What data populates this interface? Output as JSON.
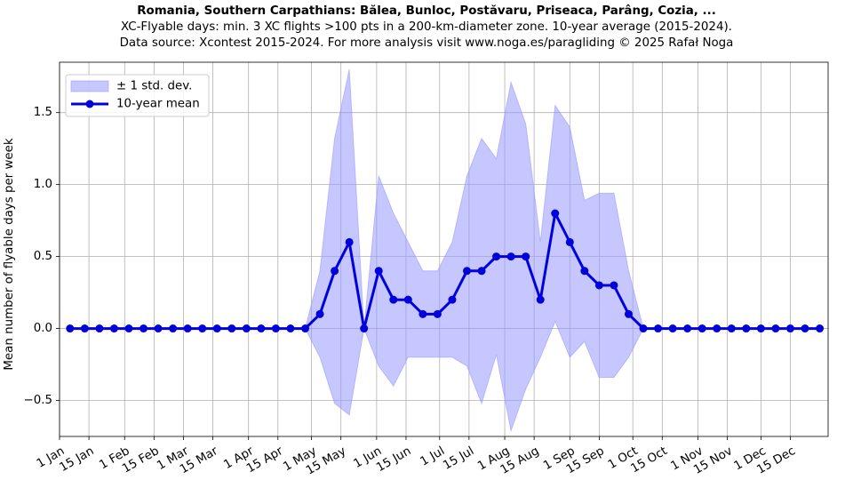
{
  "chart_data": {
    "type": "line",
    "title": "Romania, Southern Carpathians: Bălea, Bunloc, Postăvaru, Priseaca, Parâng, Cozia, ...",
    "subtitle": "XC-Flyable days: min. 3 XC flights >100 pts in a 200-km-diameter zone. 10-year average (2015-2024).",
    "source": "Data source: Xcontest 2015-2024. For more analysis visit www.noga.es/paragliding © 2025 Rafał Noga",
    "ylabel": "Mean number of flyable days per week",
    "xlabel": "",
    "x_range_days": [
      0,
      366
    ],
    "ylim": [
      -0.75,
      1.85
    ],
    "y_ticks": [
      -0.5,
      0.0,
      0.5,
      1.0,
      1.5
    ],
    "y_tick_labels": [
      "−0.5",
      "0.0",
      "0.5",
      "1.0",
      "1.5"
    ],
    "x_ticks": [
      {
        "day": 0,
        "label": "1 Jan"
      },
      {
        "day": 14,
        "label": "15 Jan"
      },
      {
        "day": 31,
        "label": "1 Feb"
      },
      {
        "day": 45,
        "label": "15 Feb"
      },
      {
        "day": 59,
        "label": "1 Mar"
      },
      {
        "day": 73,
        "label": "15 Mar"
      },
      {
        "day": 90,
        "label": "1 Apr"
      },
      {
        "day": 104,
        "label": "15 Apr"
      },
      {
        "day": 120,
        "label": "1 May"
      },
      {
        "day": 134,
        "label": "15 May"
      },
      {
        "day": 151,
        "label": "1 Jun"
      },
      {
        "day": 165,
        "label": "15 Jun"
      },
      {
        "day": 181,
        "label": "1 Jul"
      },
      {
        "day": 195,
        "label": "15 Jul"
      },
      {
        "day": 212,
        "label": "1 Aug"
      },
      {
        "day": 226,
        "label": "15 Aug"
      },
      {
        "day": 243,
        "label": "1 Sep"
      },
      {
        "day": 257,
        "label": "15 Sep"
      },
      {
        "day": 273,
        "label": "1 Oct"
      },
      {
        "day": 287,
        "label": "15 Oct"
      },
      {
        "day": 304,
        "label": "1 Nov"
      },
      {
        "day": 318,
        "label": "15 Nov"
      },
      {
        "day": 334,
        "label": "1 Dec"
      },
      {
        "day": 348,
        "label": "15 Dec"
      }
    ],
    "week_x_days": [
      5,
      12,
      19,
      26,
      33,
      40,
      47,
      54,
      61,
      68,
      75,
      82,
      89,
      96,
      103,
      110,
      117,
      124,
      131,
      138,
      145,
      152,
      159,
      166,
      173,
      180,
      187,
      194,
      201,
      208,
      215,
      222,
      229,
      236,
      243,
      250,
      257,
      264,
      271,
      278,
      285,
      292,
      299,
      306,
      313,
      320,
      327,
      334,
      341,
      348,
      355,
      362
    ],
    "series": [
      {
        "name": "10-year mean",
        "color": "#0000dd",
        "values": [
          0,
          0,
          0,
          0,
          0,
          0,
          0,
          0,
          0,
          0,
          0,
          0,
          0,
          0,
          0,
          0,
          0,
          0.1,
          0.4,
          0.6,
          0,
          0.4,
          0.2,
          0.2,
          0.1,
          0.1,
          0.2,
          0.4,
          0.4,
          0.5,
          0.5,
          0.5,
          0.2,
          0.8,
          0.6,
          0.4,
          0.3,
          0.3,
          0.1,
          0,
          0,
          0,
          0,
          0,
          0,
          0,
          0,
          0,
          0,
          0,
          0,
          0
        ]
      },
      {
        "name": "± 1 std. dev.",
        "color": "#9999ff",
        "upper": [
          0,
          0,
          0,
          0,
          0,
          0,
          0,
          0,
          0,
          0,
          0,
          0,
          0,
          0,
          0,
          0,
          0,
          0.4,
          1.32,
          1.8,
          0,
          1.06,
          0.8,
          0.6,
          0.4,
          0.4,
          0.6,
          1.06,
          1.32,
          1.18,
          1.71,
          1.42,
          0.6,
          1.55,
          1.4,
          0.89,
          0.94,
          0.94,
          0.4,
          0,
          0,
          0,
          0,
          0,
          0,
          0,
          0,
          0,
          0,
          0,
          0,
          0
        ],
        "lower": [
          0,
          0,
          0,
          0,
          0,
          0,
          0,
          0,
          0,
          0,
          0,
          0,
          0,
          0,
          0,
          0,
          0,
          -0.2,
          -0.52,
          -0.6,
          0,
          -0.26,
          -0.4,
          -0.2,
          -0.2,
          -0.2,
          -0.2,
          -0.26,
          -0.52,
          -0.18,
          -0.71,
          -0.42,
          -0.2,
          0.05,
          -0.2,
          -0.09,
          -0.34,
          -0.34,
          -0.2,
          0,
          0,
          0,
          0,
          0,
          0,
          0,
          0,
          0,
          0,
          0,
          0,
          0
        ]
      }
    ],
    "legend": {
      "placement": "top-left",
      "entries": [
        {
          "label": "± 1 std. dev.",
          "kind": "band"
        },
        {
          "label": "10-year mean",
          "kind": "line"
        }
      ]
    },
    "grid": true
  }
}
